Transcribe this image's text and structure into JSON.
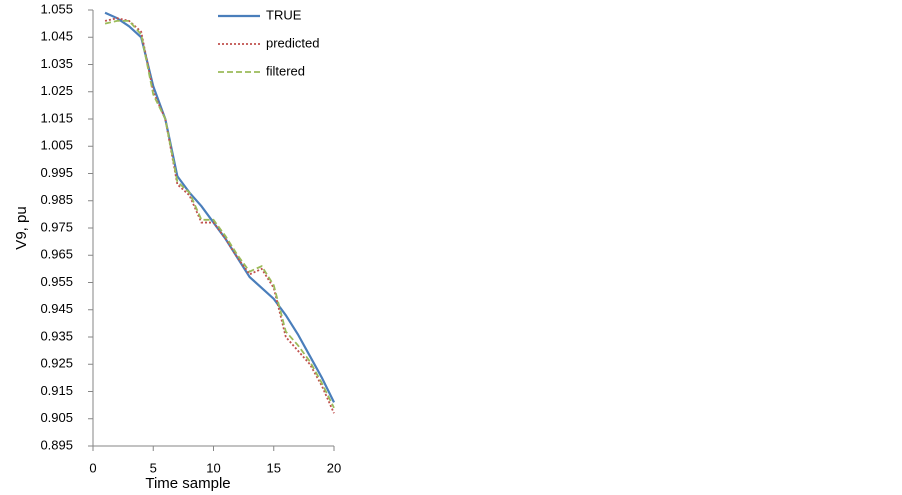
{
  "chart_data": {
    "type": "line",
    "x_label": "Time sample",
    "y_label": "V9, pu",
    "x": [
      1,
      2,
      3,
      4,
      5,
      6,
      7,
      8,
      9,
      10,
      11,
      12,
      13,
      14,
      15,
      16,
      17,
      18,
      19,
      20
    ],
    "series": [
      {
        "name": "TRUE",
        "color": "#4a7ebb",
        "dash": "solid",
        "values": [
          1.054,
          1.052,
          1.049,
          1.045,
          1.027,
          1.015,
          0.994,
          0.988,
          0.983,
          0.977,
          0.971,
          0.964,
          0.957,
          0.953,
          0.949,
          0.943,
          0.936,
          0.928,
          0.92,
          0.911
        ]
      },
      {
        "name": "predicted",
        "color": "#c0504d",
        "dash": "dotted",
        "values": [
          1.051,
          1.052,
          1.051,
          1.047,
          1.025,
          1.015,
          0.991,
          0.987,
          0.977,
          0.977,
          0.971,
          0.964,
          0.958,
          0.96,
          0.953,
          0.935,
          0.93,
          0.925,
          0.917,
          0.907
        ]
      },
      {
        "name": "filtered",
        "color": "#9bbb59",
        "dash": "dashed",
        "values": [
          1.05,
          1.051,
          1.051,
          1.046,
          1.024,
          1.015,
          0.992,
          0.988,
          0.978,
          0.978,
          0.972,
          0.965,
          0.959,
          0.961,
          0.954,
          0.937,
          0.932,
          0.926,
          0.918,
          0.909
        ]
      }
    ],
    "xlim": [
      0,
      20
    ],
    "xticks": [
      0,
      5,
      10,
      15,
      20
    ],
    "ylim": [
      0.895,
      1.055
    ],
    "yticks": [
      0.895,
      0.905,
      0.915,
      0.925,
      0.935,
      0.945,
      0.955,
      0.965,
      0.975,
      0.985,
      0.995,
      1.005,
      1.015,
      1.025,
      1.035,
      1.045,
      1.055
    ],
    "grid": false,
    "legend": "top"
  }
}
